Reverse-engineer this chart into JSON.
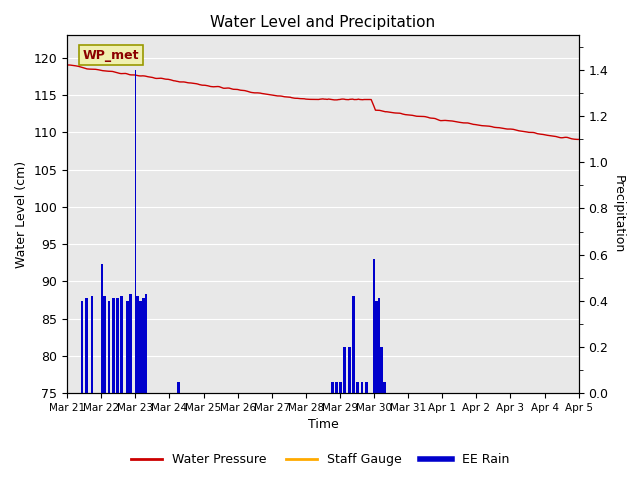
{
  "title": "Water Level and Precipitation",
  "xlabel": "Time",
  "ylabel_left": "Water Level (cm)",
  "ylabel_right": "Precipitation",
  "annotation_text": "WP_met",
  "bg_color": "#ffffff",
  "plot_bg_color": "#e8e8e8",
  "left_ylim": [
    75,
    123
  ],
  "right_ylim": [
    0.0,
    1.55
  ],
  "left_yticks": [
    75,
    80,
    85,
    90,
    95,
    100,
    105,
    110,
    115,
    120
  ],
  "right_yticks": [
    0.0,
    0.2,
    0.4,
    0.6,
    0.8,
    1.0,
    1.2,
    1.4
  ],
  "water_pressure_color": "#cc0000",
  "staff_gauge_color": "#ffaa00",
  "rain_color": "#0000cc",
  "legend_items": [
    "Water Pressure",
    "Staff Gauge",
    "EE Rain"
  ],
  "legend_colors": [
    "#cc0000",
    "#ffaa00",
    "#0000cc"
  ]
}
